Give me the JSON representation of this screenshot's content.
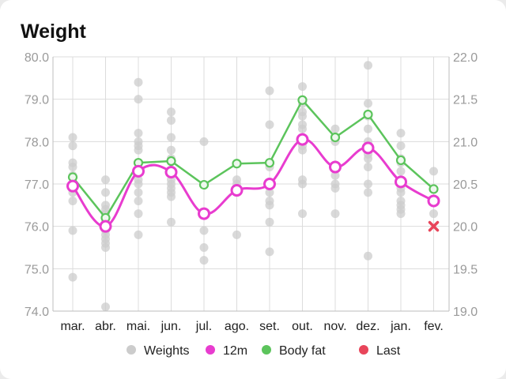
{
  "title": "Weight",
  "chart_data": {
    "type": "line",
    "categories": [
      "mar.",
      "abr.",
      "mai.",
      "jun.",
      "jul.",
      "ago.",
      "set.",
      "out.",
      "nov.",
      "dez.",
      "jan.",
      "fev."
    ],
    "y_left": {
      "min": 74.0,
      "max": 80.0,
      "ticks": [
        "80.0",
        "79.0",
        "78.0",
        "77.0",
        "76.0",
        "75.0",
        "74.0"
      ]
    },
    "y_right": {
      "min": 19.0,
      "max": 22.0,
      "ticks": [
        "22.0",
        "21.5",
        "21.0",
        "20.5",
        "20.0",
        "19.5",
        "19.0"
      ]
    },
    "grid": true,
    "legend_position": "bottom",
    "series": [
      {
        "name": "12m",
        "axis": "left",
        "color": "#e83ccf",
        "values": [
          76.95,
          76.0,
          77.3,
          77.28,
          76.3,
          76.85,
          77.0,
          78.05,
          77.4,
          77.85,
          77.05,
          76.6
        ]
      },
      {
        "name": "Body fat",
        "axis": "right",
        "color": "#5cc45c",
        "values": [
          20.58,
          20.1,
          20.75,
          20.77,
          20.49,
          20.74,
          20.75,
          21.49,
          21.05,
          21.32,
          20.78,
          20.44
        ]
      },
      {
        "name": "Last",
        "axis": "left",
        "color": "#e8455a",
        "marker": "x",
        "points": [
          {
            "category": "fev.",
            "value": 76.0
          }
        ]
      }
    ],
    "scatter": {
      "name": "Weights",
      "axis": "left",
      "color": "#cccccc",
      "points": [
        [
          "mar.",
          78.1
        ],
        [
          "mar.",
          77.9
        ],
        [
          "mar.",
          77.5
        ],
        [
          "mar.",
          77.4
        ],
        [
          "mar.",
          77.2
        ],
        [
          "mar.",
          77.0
        ],
        [
          "mar.",
          76.9
        ],
        [
          "mar.",
          76.8
        ],
        [
          "mar.",
          76.6
        ],
        [
          "mar.",
          75.9
        ],
        [
          "mar.",
          74.8
        ],
        [
          "abr.",
          77.1
        ],
        [
          "abr.",
          76.8
        ],
        [
          "abr.",
          76.5
        ],
        [
          "abr.",
          76.4
        ],
        [
          "abr.",
          76.3
        ],
        [
          "abr.",
          76.2
        ],
        [
          "abr.",
          76.1
        ],
        [
          "abr.",
          76.0
        ],
        [
          "abr.",
          75.9
        ],
        [
          "abr.",
          75.8
        ],
        [
          "abr.",
          75.7
        ],
        [
          "abr.",
          75.6
        ],
        [
          "abr.",
          75.5
        ],
        [
          "abr.",
          74.1
        ],
        [
          "mai.",
          79.4
        ],
        [
          "mai.",
          79.0
        ],
        [
          "mai.",
          78.2
        ],
        [
          "mai.",
          78.0
        ],
        [
          "mai.",
          77.9
        ],
        [
          "mai.",
          77.8
        ],
        [
          "mai.",
          77.5
        ],
        [
          "mai.",
          77.3
        ],
        [
          "mai.",
          77.1
        ],
        [
          "mai.",
          77.0
        ],
        [
          "mai.",
          76.8
        ],
        [
          "mai.",
          76.6
        ],
        [
          "mai.",
          76.3
        ],
        [
          "mai.",
          75.8
        ],
        [
          "jun.",
          78.7
        ],
        [
          "jun.",
          78.5
        ],
        [
          "jun.",
          78.1
        ],
        [
          "jun.",
          77.8
        ],
        [
          "jun.",
          77.6
        ],
        [
          "jun.",
          77.3
        ],
        [
          "jun.",
          77.1
        ],
        [
          "jun.",
          77.0
        ],
        [
          "jun.",
          76.9
        ],
        [
          "jun.",
          76.8
        ],
        [
          "jun.",
          76.7
        ],
        [
          "jun.",
          76.1
        ],
        [
          "jul.",
          78.0
        ],
        [
          "jul.",
          76.3
        ],
        [
          "jul.",
          75.9
        ],
        [
          "jul.",
          75.5
        ],
        [
          "jul.",
          75.2
        ],
        [
          "ago.",
          77.1
        ],
        [
          "ago.",
          77.0
        ],
        [
          "ago.",
          76.9
        ],
        [
          "ago.",
          76.8
        ],
        [
          "ago.",
          75.8
        ],
        [
          "set.",
          79.2
        ],
        [
          "set.",
          78.4
        ],
        [
          "set.",
          77.4
        ],
        [
          "set.",
          77.0
        ],
        [
          "set.",
          76.8
        ],
        [
          "set.",
          76.6
        ],
        [
          "set.",
          76.5
        ],
        [
          "set.",
          76.1
        ],
        [
          "set.",
          75.4
        ],
        [
          "out.",
          79.3
        ],
        [
          "out.",
          78.9
        ],
        [
          "out.",
          78.7
        ],
        [
          "out.",
          78.6
        ],
        [
          "out.",
          78.4
        ],
        [
          "out.",
          78.3
        ],
        [
          "out.",
          78.1
        ],
        [
          "out.",
          77.9
        ],
        [
          "out.",
          77.8
        ],
        [
          "out.",
          77.1
        ],
        [
          "out.",
          77.0
        ],
        [
          "out.",
          76.3
        ],
        [
          "nov.",
          78.3
        ],
        [
          "nov.",
          78.0
        ],
        [
          "nov.",
          77.2
        ],
        [
          "nov.",
          77.0
        ],
        [
          "nov.",
          76.9
        ],
        [
          "nov.",
          76.3
        ],
        [
          "dez.",
          79.8
        ],
        [
          "dez.",
          78.9
        ],
        [
          "dez.",
          78.6
        ],
        [
          "dez.",
          78.3
        ],
        [
          "dez.",
          78.0
        ],
        [
          "dez.",
          77.9
        ],
        [
          "dez.",
          77.7
        ],
        [
          "dez.",
          77.6
        ],
        [
          "dez.",
          77.4
        ],
        [
          "dez.",
          77.0
        ],
        [
          "dez.",
          76.8
        ],
        [
          "dez.",
          75.3
        ],
        [
          "jan.",
          78.2
        ],
        [
          "jan.",
          77.9
        ],
        [
          "jan.",
          77.6
        ],
        [
          "jan.",
          77.5
        ],
        [
          "jan.",
          77.3
        ],
        [
          "jan.",
          77.1
        ],
        [
          "jan.",
          77.0
        ],
        [
          "jan.",
          76.9
        ],
        [
          "jan.",
          76.8
        ],
        [
          "jan.",
          76.6
        ],
        [
          "jan.",
          76.5
        ],
        [
          "jan.",
          76.4
        ],
        [
          "jan.",
          76.3
        ],
        [
          "fev.",
          77.3
        ],
        [
          "fev.",
          76.6
        ],
        [
          "fev.",
          76.3
        ]
      ]
    },
    "legend": [
      {
        "label": "Weights",
        "color": "#cccccc"
      },
      {
        "label": "12m",
        "color": "#e83ccf"
      },
      {
        "label": "Body fat",
        "color": "#5cc45c"
      },
      {
        "label": "Last",
        "color": "#e8455a"
      }
    ]
  }
}
